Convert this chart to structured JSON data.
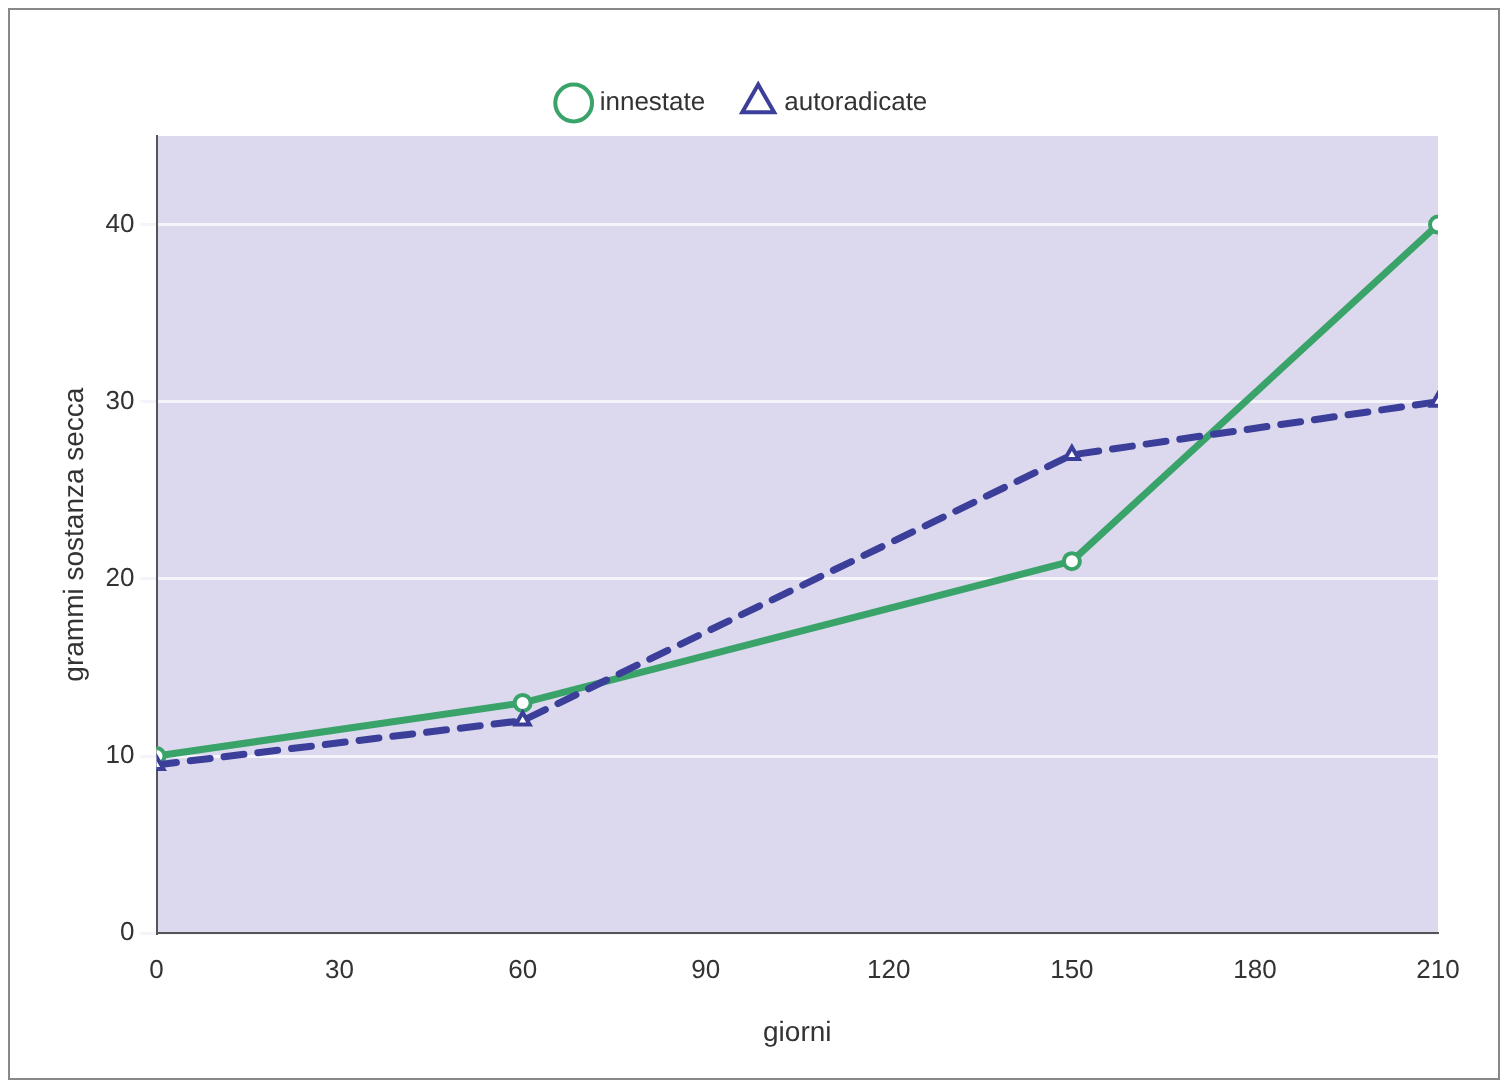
{
  "chart_data": {
    "type": "line",
    "xlabel": "giorni",
    "ylabel": "grammi sostanza secca",
    "x": [
      0,
      60,
      150,
      210
    ],
    "series": [
      {
        "name": "innestate",
        "color": "#3aa36a",
        "values": [
          10,
          13,
          21,
          40
        ],
        "marker": "circle",
        "line_style": "solid"
      },
      {
        "name": "autoradicate",
        "color": "#3c3f9a",
        "values": [
          9.5,
          12,
          27,
          30
        ],
        "marker": "triangle",
        "line_style": "dashed"
      }
    ],
    "xlim": [
      0,
      210
    ],
    "xticks": [
      0,
      30,
      60,
      90,
      120,
      150,
      180,
      210
    ],
    "ylim": [
      0,
      45
    ],
    "yticks": [
      0,
      10,
      20,
      30,
      40
    ],
    "grid": "y",
    "legend": "top"
  }
}
